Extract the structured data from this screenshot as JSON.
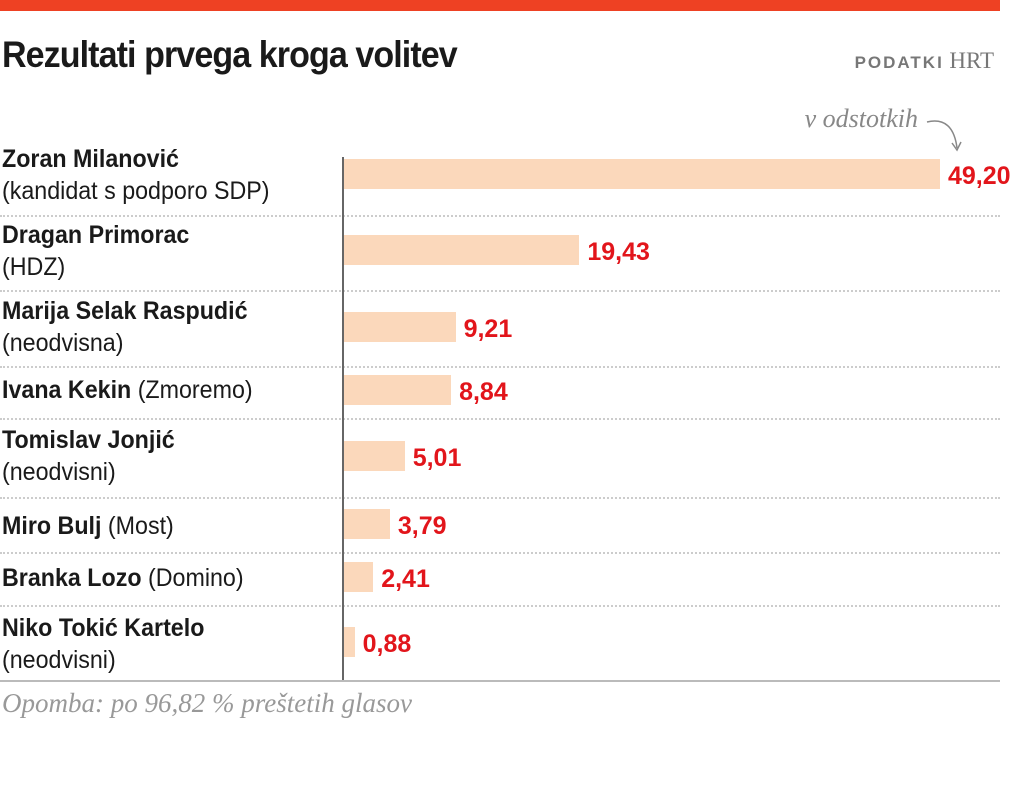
{
  "title": "Rezultati prvega kroga volitev",
  "source_label": "PODATKI",
  "source_name": "HRT",
  "colors": {
    "accent": "#ee4123",
    "bar": "#fbd8bb",
    "value": "#e2151b"
  },
  "chart_data": {
    "type": "bar",
    "orientation": "horizontal",
    "unit_label": "v odstotkih",
    "categories": [
      {
        "name": "Zoran Milanović",
        "party": "(kandidat s podporo SDP)"
      },
      {
        "name": "Dragan Primorac",
        "party": "(HDZ)"
      },
      {
        "name": "Marija Selak Raspudić",
        "party": "(neodvisna)"
      },
      {
        "name": "Ivana Kekin",
        "party": "(Zmoremo)"
      },
      {
        "name": "Tomislav Jonjić",
        "party": "(neodvisni)"
      },
      {
        "name": "Miro Bulj",
        "party": "(Most)"
      },
      {
        "name": "Branka Lozo",
        "party": "(Domino)"
      },
      {
        "name": "Niko Tokić Kartelo",
        "party": "(neodvisni)"
      }
    ],
    "values": [
      49.2,
      19.43,
      9.21,
      8.84,
      5.01,
      3.79,
      2.41,
      0.88
    ],
    "value_labels": [
      "49,20",
      "19,43",
      "9,21",
      "8,84",
      "5,01",
      "3,79",
      "2,41",
      "0,88"
    ],
    "xlim": [
      0,
      49.2
    ],
    "grid": false
  },
  "note": "Opomba: po 96,82 % preštetih glasov"
}
